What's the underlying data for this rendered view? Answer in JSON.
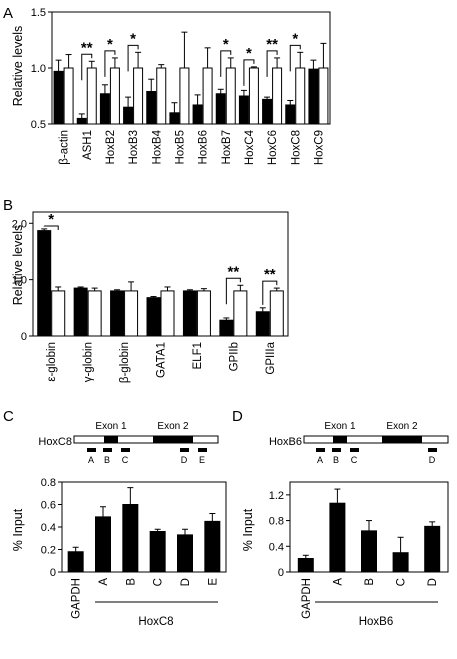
{
  "chart_data": [
    {
      "panel": "A",
      "type": "bar",
      "ylabel": "Relative levels",
      "ylim": [
        0.5,
        1.5
      ],
      "yticks": [
        "0.5",
        "1.0",
        "1.5"
      ],
      "categories": [
        "β-actin",
        "ASH1",
        "HoxB2",
        "HoxB3",
        "HoxB4",
        "HoxB5",
        "HoxB6",
        "HoxB7",
        "HoxC4",
        "HoxC6",
        "HoxC8",
        "HoxC9"
      ],
      "series": [
        {
          "color": "#000000",
          "values": [
            0.97,
            0.55,
            0.77,
            0.65,
            0.79,
            0.6,
            0.67,
            0.77,
            0.75,
            0.72,
            0.67,
            0.99
          ],
          "errors": [
            0.1,
            0.04,
            0.08,
            0.09,
            0.11,
            0.09,
            0.09,
            0.04,
            0.05,
            0.02,
            0.04,
            0.08
          ]
        },
        {
          "color": "#ffffff",
          "values": [
            1.0,
            1.0,
            1.0,
            1.0,
            1.0,
            1.0,
            1.0,
            1.0,
            1.0,
            1.0,
            1.0,
            1.0
          ],
          "errors": [
            0.12,
            0.06,
            0.09,
            0.14,
            0.03,
            0.32,
            0.18,
            0.09,
            0.01,
            0.09,
            0.14,
            0.22
          ]
        }
      ],
      "significance": [
        {
          "index": 1,
          "label": "**"
        },
        {
          "index": 2,
          "label": "*"
        },
        {
          "index": 3,
          "label": "*"
        },
        {
          "index": 7,
          "label": "*"
        },
        {
          "index": 8,
          "label": "*"
        },
        {
          "index": 9,
          "label": "**"
        },
        {
          "index": 10,
          "label": "*"
        }
      ]
    },
    {
      "panel": "B",
      "type": "bar",
      "ylabel": "Relative levels",
      "ylim": [
        0,
        2.2
      ],
      "yticks": [
        "0",
        "1.0",
        "2.0"
      ],
      "categories": [
        "ε-globin",
        "γ-globin",
        "β-globin",
        "GATA1",
        "ELF1",
        "GPIIb",
        "GPIIIa"
      ],
      "series": [
        {
          "color": "#000000",
          "values": [
            1.87,
            0.85,
            0.8,
            0.68,
            0.8,
            0.28,
            0.43
          ],
          "errors": [
            0.03,
            0.02,
            0.02,
            0.02,
            0.02,
            0.04,
            0.07
          ]
        },
        {
          "color": "#ffffff",
          "values": [
            0.8,
            0.8,
            0.8,
            0.8,
            0.8,
            0.8,
            0.8
          ],
          "errors": [
            0.07,
            0.05,
            0.16,
            0.07,
            0.04,
            0.1,
            0.05
          ]
        }
      ],
      "significance": [
        {
          "index": 0,
          "label": "*"
        },
        {
          "index": 5,
          "label": "**"
        },
        {
          "index": 6,
          "label": "**"
        }
      ]
    },
    {
      "panel": "C",
      "type": "bar",
      "ylabel": "% Input",
      "ylim": [
        0,
        0.8
      ],
      "yticks": [
        "0",
        "0.2",
        "0.4",
        "0.6",
        "0.8"
      ],
      "categories": [
        "GAPDH",
        "A",
        "B",
        "C",
        "D",
        "E"
      ],
      "group_label": "HoxC8",
      "values": [
        0.18,
        0.49,
        0.6,
        0.36,
        0.33,
        0.45
      ],
      "errors": [
        0.04,
        0.09,
        0.15,
        0.02,
        0.05,
        0.07
      ],
      "gene_map": {
        "gene": "HoxC8",
        "exons": [
          "Exon 1",
          "Exon 2"
        ],
        "amplicons": [
          "A",
          "B",
          "C",
          "D",
          "E"
        ]
      }
    },
    {
      "panel": "D",
      "type": "bar",
      "ylabel": "% Input",
      "ylim": [
        0,
        1.4
      ],
      "yticks": [
        "0",
        "0.4",
        "0.8",
        "1.2"
      ],
      "categories": [
        "GAPDH",
        "A",
        "B",
        "C",
        "D"
      ],
      "group_label": "HoxB6",
      "values": [
        0.21,
        1.07,
        0.64,
        0.3,
        0.71
      ],
      "errors": [
        0.05,
        0.22,
        0.16,
        0.24,
        0.07
      ],
      "gene_map": {
        "gene": "HoxB6",
        "exons": [
          "Exon 1",
          "Exon 2"
        ],
        "amplicons": [
          "A",
          "B",
          "C",
          "D"
        ]
      }
    }
  ]
}
